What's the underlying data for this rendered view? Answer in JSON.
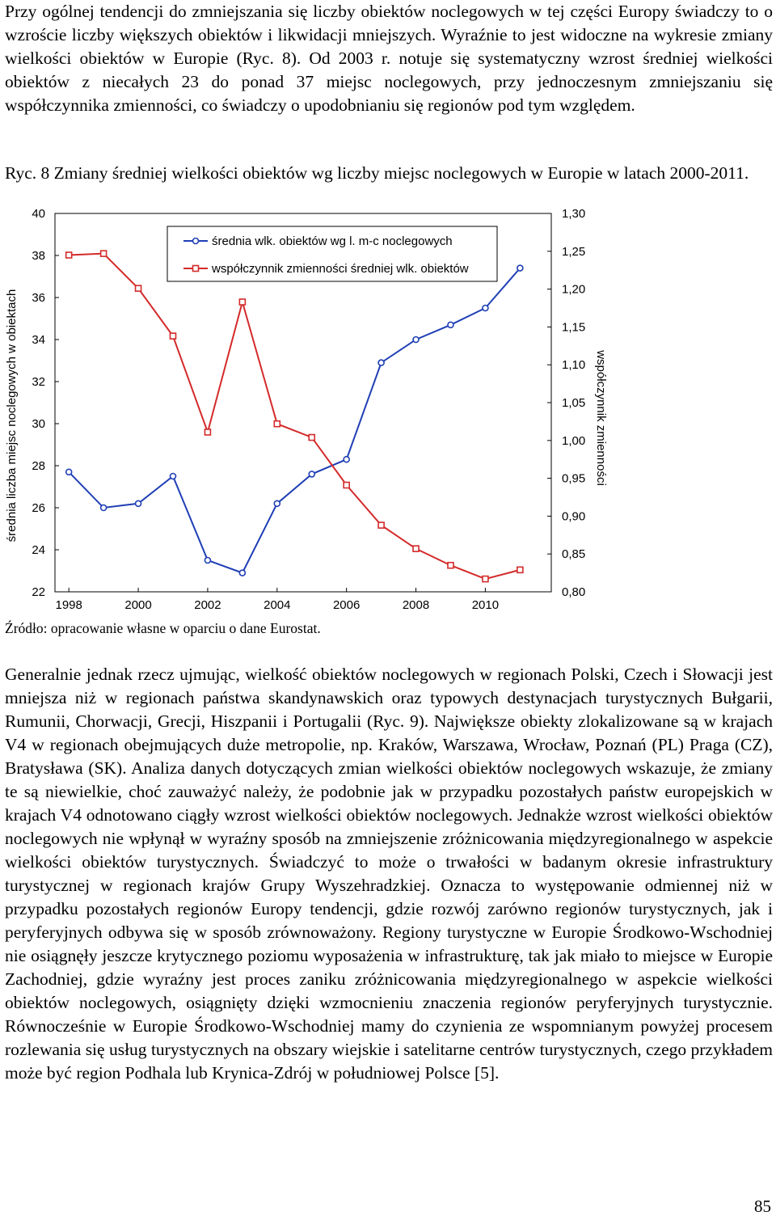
{
  "paragraph_1": "Przy ogólnej tendencji do zmniejszania się liczby obiektów noclegowych w tej części Europy świadczy to o wzroście liczby większych obiektów i likwidacji mniejszych. Wyraźnie to jest widoczne na wykresie zmiany wielkości obiektów w Europie (Ryc. 8). Od 2003 r. notuje się systematyczny wzrost średniej wielkości obiektów z niecałych 23 do ponad 37 miejsc noclegowych, przy jednoczesnym zmniejszaniu się współczynnika zmienności, co świadczy o upodobnianiu się regionów pod tym względem.",
  "figure_caption": "Ryc. 8 Zmiany średniej wielkości obiektów wg liczby miejsc noclegowych w Europie w latach 2000-2011.",
  "figure_source": "Źródło: opracowanie własne w oparciu o dane Eurostat.",
  "paragraph_2": "Generalnie jednak rzecz ujmując, wielkość obiektów noclegowych w regionach Polski, Czech i Słowacji jest mniejsza niż w regionach państwa skandynawskich oraz typowych destynacjach turystycznych Bułgarii, Rumunii, Chorwacji, Grecji, Hiszpanii i Portugalii (Ryc. 9). Największe obiekty zlokalizowane są w krajach V4 w regionach obejmujących duże metropolie, np. Kraków, Warszawa, Wrocław, Poznań (PL) Praga (CZ), Bratysława (SK). Analiza danych dotyczących zmian wielkości obiektów noclegowych wskazuje, że zmiany te są niewielkie, choć zauważyć należy, że podobnie jak w przypadku pozostałych państw europejskich w krajach V4 odnotowano ciągły wzrost wielkości obiektów noclegowych. Jednakże wzrost wielkości obiektów noclegowych nie wpłynął w wyraźny sposób na zmniejszenie zróżnicowania międzyregionalnego w aspekcie wielkości obiektów turystycznych. Świadczyć to może o trwałości w badanym okresie infrastruktury turystycznej w regionach krajów Grupy Wyszehradzkiej. Oznacza to występowanie odmiennej niż w przypadku pozostałych regionów Europy tendencji, gdzie rozwój zarówno regionów turystycznych, jak i peryferyjnych odbywa się w sposób zrównoważony. Regiony turystyczne w Europie Środkowo-Wschodniej nie osiągnęły jeszcze krytycznego poziomu wyposażenia w infrastrukturę, tak jak miało to miejsce w Europie Zachodniej, gdzie wyraźny jest proces zaniku zróżnicowania międzyregionalnego w aspekcie wielkości obiektów noclegowych, osiągnięty dzięki wzmocnieniu znaczenia regionów peryferyjnych turystycznie. Równocześnie w Europie Środkowo-Wschodniej mamy do czynienia ze wspomnianym powyżej procesem rozlewania się usług turystycznych na obszary wiejskie i satelitarne centrów turystycznych, czego przykładem może być region Podhala lub Krynica-Zdrój w południowej Polsce [5].",
  "page_number": "85",
  "chart_data": {
    "type": "line",
    "title": "",
    "xlabel": "",
    "ylabel": "średnia liczba miejsc noclegowych w obiektach",
    "ylabel_right": "współczynnik zmienności",
    "xlim": [
      1998,
      2011
    ],
    "ylim": [
      22,
      40
    ],
    "ylim_right": [
      0.8,
      1.3
    ],
    "x_ticks": [
      "1998",
      "2000",
      "2002",
      "2004",
      "2006",
      "2008",
      "2010"
    ],
    "y_ticks": [
      "22",
      "24",
      "26",
      "28",
      "30",
      "32",
      "34",
      "36",
      "38",
      "40"
    ],
    "y_ticks_right": [
      "0,80",
      "0,85",
      "0,90",
      "0,95",
      "1,00",
      "1,05",
      "1,10",
      "1,15",
      "1,20",
      "1,25",
      "1,30"
    ],
    "grid": false,
    "legend_position": "top",
    "series": [
      {
        "name": "średnia wlk. obiektów wg l. m-c noclegowych",
        "axis": "left",
        "color": "#1f3fb5",
        "marker": "circle",
        "x": [
          1998,
          1999,
          2000,
          2001,
          2002,
          2003,
          2004,
          2005,
          2006,
          2007,
          2008,
          2009,
          2010,
          2011
        ],
        "y": [
          27.7,
          26.0,
          26.2,
          27.5,
          23.5,
          22.9,
          26.2,
          27.6,
          28.3,
          32.9,
          34.0,
          34.7,
          35.5,
          37.4
        ]
      },
      {
        "name": "współczynnik zmienności średniej wlk. obiektów",
        "axis": "right",
        "color": "#d42a2a",
        "marker": "square",
        "x": [
          1998,
          1999,
          2000,
          2001,
          2002,
          2003,
          2004,
          2005,
          2006,
          2007,
          2008,
          2009,
          2010,
          2011
        ],
        "y": [
          1.245,
          1.247,
          1.201,
          1.138,
          1.011,
          1.183,
          1.022,
          1.004,
          0.941,
          0.888,
          0.857,
          0.835,
          0.817,
          0.829
        ]
      }
    ]
  }
}
